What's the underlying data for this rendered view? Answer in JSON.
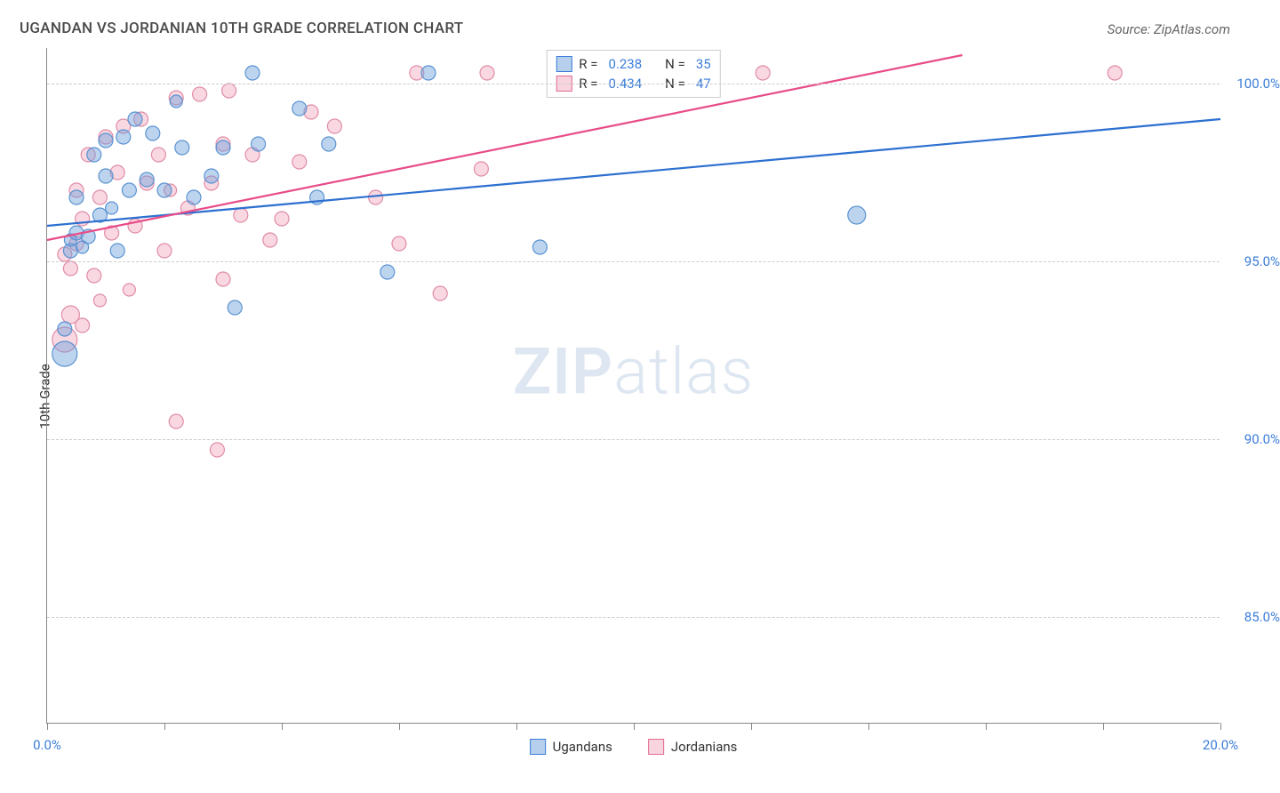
{
  "title": "UGANDAN VS JORDANIAN 10TH GRADE CORRELATION CHART",
  "source": "Source: ZipAtlas.com",
  "ylabel": "10th Grade",
  "watermark": {
    "bold": "ZIP",
    "rest": "atlas"
  },
  "chart": {
    "type": "scatter",
    "xlim": [
      0,
      20
    ],
    "ylim": [
      82,
      101
    ],
    "x_ticks": [
      0,
      2,
      4,
      6,
      8,
      10,
      12,
      14,
      16,
      18,
      20
    ],
    "x_tick_labels": {
      "0": "0.0%",
      "20": "20.0%"
    },
    "y_ticks": [
      85,
      90,
      95,
      100
    ],
    "y_tick_labels": [
      "85.0%",
      "90.0%",
      "95.0%",
      "100.0%"
    ],
    "background_color": "#ffffff",
    "grid_color": "#cccccc"
  },
  "series": {
    "ugandans": {
      "label": "Ugandans",
      "r_value": "0.238",
      "n_value": "35",
      "marker_color_fill": "rgba(108,160,220,0.45)",
      "marker_color_stroke": "#5a93d1",
      "line_color": "#2d6fd0",
      "line": {
        "x1": 0,
        "y1": 96.0,
        "x2": 20,
        "y2": 99.0
      },
      "points": [
        {
          "x": 0.3,
          "y": 92.4,
          "r": 14
        },
        {
          "x": 0.3,
          "y": 93.1,
          "r": 8
        },
        {
          "x": 0.4,
          "y": 95.3,
          "r": 8
        },
        {
          "x": 0.4,
          "y": 95.6,
          "r": 7
        },
        {
          "x": 0.5,
          "y": 95.8,
          "r": 8
        },
        {
          "x": 0.5,
          "y": 96.8,
          "r": 8
        },
        {
          "x": 0.6,
          "y": 95.4,
          "r": 7
        },
        {
          "x": 0.7,
          "y": 95.7,
          "r": 8
        },
        {
          "x": 0.8,
          "y": 98.0,
          "r": 8
        },
        {
          "x": 0.9,
          "y": 96.3,
          "r": 8
        },
        {
          "x": 1.0,
          "y": 97.4,
          "r": 8
        },
        {
          "x": 1.0,
          "y": 98.4,
          "r": 8
        },
        {
          "x": 1.2,
          "y": 95.3,
          "r": 8
        },
        {
          "x": 1.3,
          "y": 98.5,
          "r": 8
        },
        {
          "x": 1.4,
          "y": 97.0,
          "r": 8
        },
        {
          "x": 1.5,
          "y": 99.0,
          "r": 8
        },
        {
          "x": 1.7,
          "y": 97.3,
          "r": 8
        },
        {
          "x": 1.8,
          "y": 98.6,
          "r": 8
        },
        {
          "x": 2.0,
          "y": 97.0,
          "r": 8
        },
        {
          "x": 2.3,
          "y": 98.2,
          "r": 8
        },
        {
          "x": 2.5,
          "y": 96.8,
          "r": 8
        },
        {
          "x": 2.8,
          "y": 97.4,
          "r": 8
        },
        {
          "x": 3.0,
          "y": 98.2,
          "r": 8
        },
        {
          "x": 3.2,
          "y": 93.7,
          "r": 8
        },
        {
          "x": 3.5,
          "y": 100.3,
          "r": 8
        },
        {
          "x": 3.6,
          "y": 98.3,
          "r": 8
        },
        {
          "x": 4.3,
          "y": 99.3,
          "r": 8
        },
        {
          "x": 4.6,
          "y": 96.8,
          "r": 8
        },
        {
          "x": 4.8,
          "y": 98.3,
          "r": 8
        },
        {
          "x": 5.8,
          "y": 94.7,
          "r": 8
        },
        {
          "x": 6.5,
          "y": 100.3,
          "r": 8
        },
        {
          "x": 8.4,
          "y": 95.4,
          "r": 8
        },
        {
          "x": 13.8,
          "y": 96.3,
          "r": 10
        },
        {
          "x": 1.1,
          "y": 96.5,
          "r": 7
        },
        {
          "x": 2.2,
          "y": 99.5,
          "r": 7
        }
      ]
    },
    "jordanians": {
      "label": "Jordanians",
      "r_value": "0.434",
      "n_value": "47",
      "marker_color_fill": "rgba(241,169,191,0.45)",
      "marker_color_stroke": "#e08ca7",
      "line_color": "#e84c88",
      "line": {
        "x1": 0,
        "y1": 95.6,
        "x2": 15.6,
        "y2": 100.8
      },
      "points": [
        {
          "x": 0.3,
          "y": 92.8,
          "r": 14
        },
        {
          "x": 0.3,
          "y": 95.2,
          "r": 8
        },
        {
          "x": 0.4,
          "y": 93.5,
          "r": 10
        },
        {
          "x": 0.4,
          "y": 94.8,
          "r": 8
        },
        {
          "x": 0.5,
          "y": 95.5,
          "r": 8
        },
        {
          "x": 0.5,
          "y": 97.0,
          "r": 8
        },
        {
          "x": 0.6,
          "y": 96.2,
          "r": 8
        },
        {
          "x": 0.6,
          "y": 93.2,
          "r": 8
        },
        {
          "x": 0.7,
          "y": 98.0,
          "r": 8
        },
        {
          "x": 0.8,
          "y": 94.6,
          "r": 8
        },
        {
          "x": 0.9,
          "y": 96.8,
          "r": 8
        },
        {
          "x": 1.0,
          "y": 98.5,
          "r": 8
        },
        {
          "x": 1.1,
          "y": 95.8,
          "r": 8
        },
        {
          "x": 1.2,
          "y": 97.5,
          "r": 8
        },
        {
          "x": 1.3,
          "y": 98.8,
          "r": 8
        },
        {
          "x": 1.5,
          "y": 96.0,
          "r": 8
        },
        {
          "x": 1.6,
          "y": 99.0,
          "r": 8
        },
        {
          "x": 1.7,
          "y": 97.2,
          "r": 8
        },
        {
          "x": 1.9,
          "y": 98.0,
          "r": 8
        },
        {
          "x": 2.0,
          "y": 95.3,
          "r": 8
        },
        {
          "x": 2.2,
          "y": 99.6,
          "r": 8
        },
        {
          "x": 2.2,
          "y": 90.5,
          "r": 8
        },
        {
          "x": 2.4,
          "y": 96.5,
          "r": 8
        },
        {
          "x": 2.6,
          "y": 99.7,
          "r": 8
        },
        {
          "x": 2.8,
          "y": 97.2,
          "r": 8
        },
        {
          "x": 2.9,
          "y": 89.7,
          "r": 8
        },
        {
          "x": 3.0,
          "y": 98.3,
          "r": 8
        },
        {
          "x": 3.0,
          "y": 94.5,
          "r": 8
        },
        {
          "x": 3.1,
          "y": 99.8,
          "r": 8
        },
        {
          "x": 3.3,
          "y": 96.3,
          "r": 8
        },
        {
          "x": 3.5,
          "y": 98.0,
          "r": 8
        },
        {
          "x": 3.8,
          "y": 95.6,
          "r": 8
        },
        {
          "x": 4.0,
          "y": 96.2,
          "r": 8
        },
        {
          "x": 4.3,
          "y": 97.8,
          "r": 8
        },
        {
          "x": 4.5,
          "y": 99.2,
          "r": 8
        },
        {
          "x": 4.9,
          "y": 98.8,
          "r": 8
        },
        {
          "x": 5.6,
          "y": 96.8,
          "r": 8
        },
        {
          "x": 6.0,
          "y": 95.5,
          "r": 8
        },
        {
          "x": 6.3,
          "y": 100.3,
          "r": 8
        },
        {
          "x": 6.7,
          "y": 94.1,
          "r": 8
        },
        {
          "x": 7.4,
          "y": 97.6,
          "r": 8
        },
        {
          "x": 7.5,
          "y": 100.3,
          "r": 8
        },
        {
          "x": 12.2,
          "y": 100.3,
          "r": 8
        },
        {
          "x": 18.2,
          "y": 100.3,
          "r": 8
        },
        {
          "x": 1.4,
          "y": 94.2,
          "r": 7
        },
        {
          "x": 0.9,
          "y": 93.9,
          "r": 7
        },
        {
          "x": 2.1,
          "y": 97.0,
          "r": 7
        }
      ]
    }
  },
  "legend_top": {
    "r_label": "R =",
    "n_label": "N ="
  }
}
